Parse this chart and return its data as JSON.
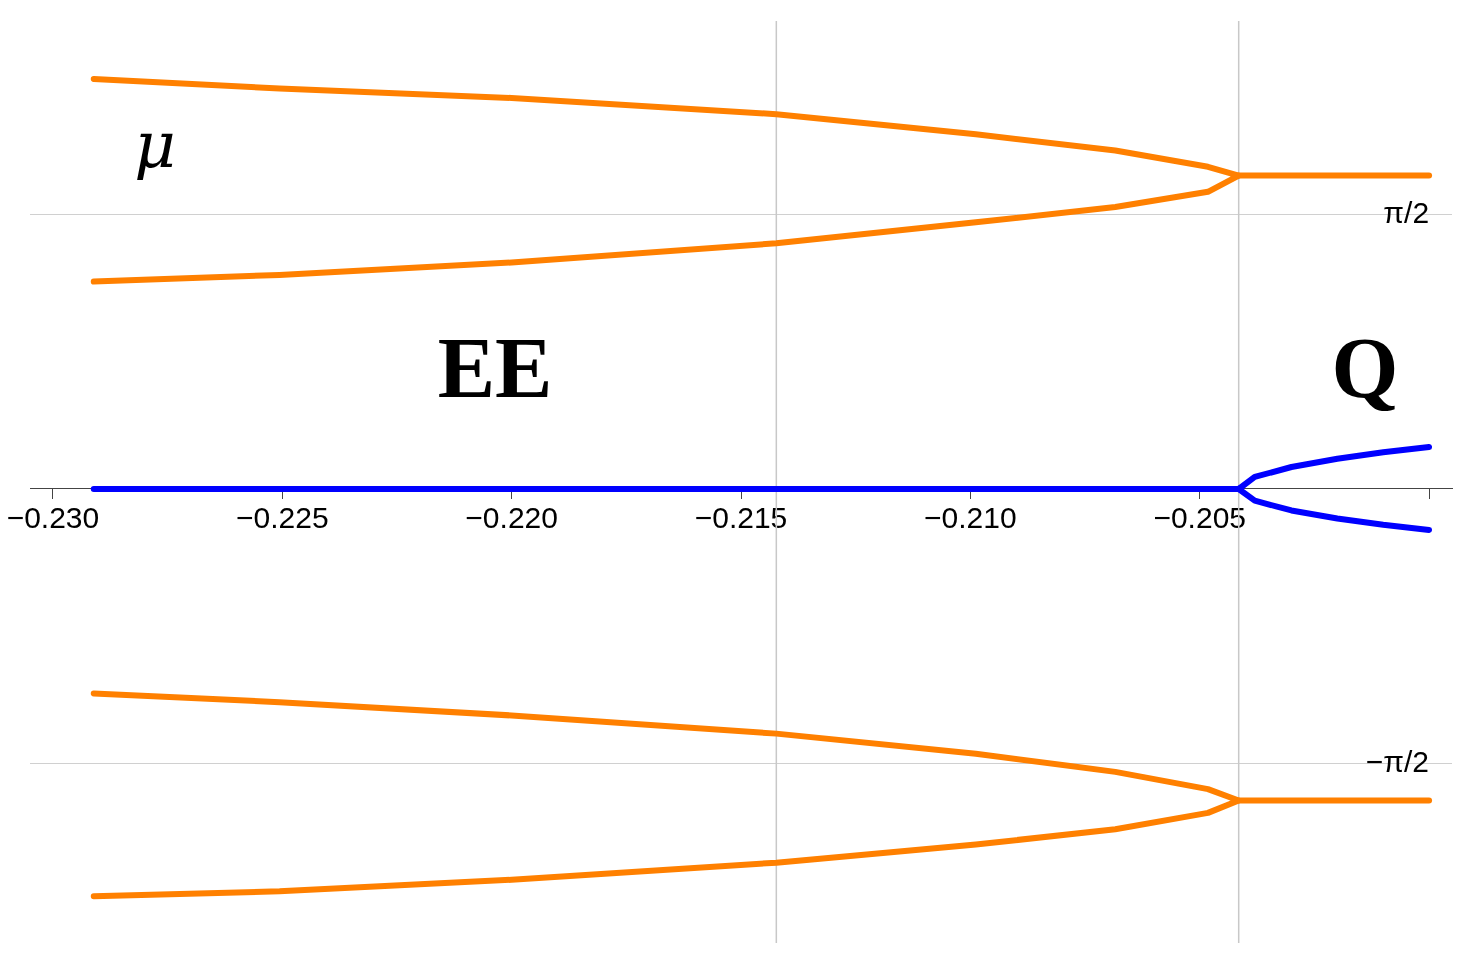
{
  "chart_data": {
    "type": "line",
    "xlim": [
      -0.2305,
      -0.1995
    ],
    "ylim": [
      -2.6,
      2.68
    ],
    "xticks": [
      {
        "value": -0.23,
        "label": "−0.230"
      },
      {
        "value": -0.225,
        "label": "−0.225"
      },
      {
        "value": -0.22,
        "label": "−0.220"
      },
      {
        "value": -0.215,
        "label": "−0.215"
      },
      {
        "value": -0.21,
        "label": "−0.210"
      },
      {
        "value": -0.205,
        "label": "−0.205"
      },
      {
        "value": -0.2,
        "label": null
      }
    ],
    "yticks": [
      {
        "value": 1.5708,
        "label": "π/2"
      },
      {
        "value": -1.5708,
        "label": "−π/2"
      }
    ],
    "grid": "y",
    "legend": false,
    "marker": "none",
    "line_style": "solid",
    "ref_lines": [
      {
        "axis": "x",
        "value": -0.21423,
        "color": "#c8c8c8"
      },
      {
        "axis": "x",
        "value": -0.20415,
        "color": "#c8c8c8"
      }
    ],
    "annotations": [
      "μ",
      "EE",
      "Q"
    ],
    "series": [
      {
        "color": "#ff8000",
        "x": [
          -0.22911,
          -0.22506,
          -0.22,
          -0.21423,
          -0.20988,
          -0.20684,
          -0.20482,
          -0.20415,
          -0.20482,
          -0.20684,
          -0.20988,
          -0.21423,
          -0.22,
          -0.22506,
          -0.22911
        ],
        "values": [
          2.348,
          2.293,
          2.239,
          2.146,
          2.031,
          1.938,
          1.845,
          1.795,
          1.702,
          1.615,
          1.527,
          1.407,
          1.297,
          1.226,
          1.188
        ]
      },
      {
        "color": "#ff8000",
        "x": [
          -0.20415,
          -0.2
        ],
        "values": [
          1.795,
          1.795
        ]
      },
      {
        "color": "#ff8000",
        "x": [
          -0.22911,
          -0.22506,
          -0.22,
          -0.21423,
          -0.20988,
          -0.20684,
          -0.20482,
          -0.20415,
          -0.20482,
          -0.20684,
          -0.20988,
          -0.21423,
          -0.22,
          -0.22506,
          -0.22911
        ],
        "values": [
          -1.171,
          -1.221,
          -1.297,
          -1.401,
          -1.516,
          -1.62,
          -1.719,
          -1.784,
          -1.855,
          -1.949,
          -2.036,
          -2.14,
          -2.238,
          -2.304,
          -2.332
        ]
      },
      {
        "color": "#ff8000",
        "x": [
          -0.20415,
          -0.2
        ],
        "values": [
          -1.784,
          -1.784
        ]
      },
      {
        "color": "#0000ff",
        "x": [
          -0.22911,
          -0.20415,
          -0.2038,
          -0.203,
          -0.202,
          -0.201,
          -0.2
        ],
        "values": [
          0,
          0,
          0.069,
          0.126,
          0.173,
          0.21,
          0.241
        ]
      },
      {
        "color": "#0000ff",
        "x": [
          -0.20415,
          -0.2038,
          -0.203,
          -0.202,
          -0.201,
          -0.2
        ],
        "values": [
          0,
          -0.067,
          -0.123,
          -0.169,
          -0.205,
          -0.235
        ]
      }
    ]
  }
}
